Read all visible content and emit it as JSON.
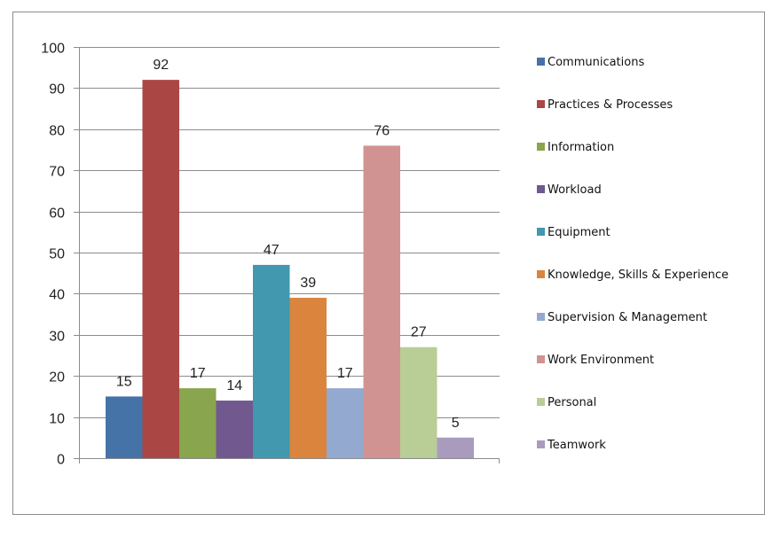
{
  "chart_data": {
    "type": "bar",
    "title": "",
    "xlabel": "",
    "ylabel": "",
    "ylim": [
      0,
      100
    ],
    "ytick_step": 10,
    "grid": true,
    "legend_position": "right",
    "series": [
      {
        "name": "Communications",
        "value": 15,
        "color": "#4572A7"
      },
      {
        "name": "Practices & Processes",
        "value": 92,
        "color": "#AA4643"
      },
      {
        "name": "Information",
        "value": 17,
        "color": "#89A54E"
      },
      {
        "name": "Workload",
        "value": 14,
        "color": "#71588F"
      },
      {
        "name": "Equipment",
        "value": 47,
        "color": "#4198AF"
      },
      {
        "name": "Knowledge, Skills & Experience",
        "value": 39,
        "color": "#DB843D"
      },
      {
        "name": "Supervision & Management",
        "value": 17,
        "color": "#93A9CF"
      },
      {
        "name": "Work Environment",
        "value": 76,
        "color": "#D19392"
      },
      {
        "name": "Personal",
        "value": 27,
        "color": "#B9CD96"
      },
      {
        "name": "Teamwork",
        "value": 5,
        "color": "#A99BBD"
      }
    ]
  }
}
